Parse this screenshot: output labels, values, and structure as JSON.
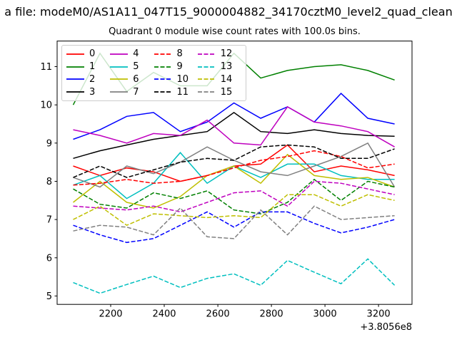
{
  "suptitle": "a file: modeM0/AS1A11_047T15_9000004882_34170cztM0_level2_quad_clean",
  "title": "Quadrant 0 module wise count rates with 100.0s bins.",
  "chart_data": {
    "type": "line",
    "title": "Quadrant 0 module wise count rates with 100.0s bins.",
    "xlabel": "",
    "ylabel": "",
    "x_offset_label": "+3.8056e8",
    "xlim": [
      2000,
      3325
    ],
    "ylim": [
      4.78,
      11.67
    ],
    "xticks": [
      2200,
      2400,
      2600,
      2800,
      3000,
      3200
    ],
    "yticks": [
      5,
      6,
      7,
      8,
      9,
      10,
      11
    ],
    "grid": false,
    "legend_position": "upper-left",
    "legend_columns": 4,
    "x": [
      2060,
      2160,
      2260,
      2360,
      2460,
      2560,
      2660,
      2760,
      2860,
      2960,
      3060,
      3160,
      3260
    ],
    "series": [
      {
        "name": "0",
        "color": "#ff0000",
        "dash": "solid",
        "values": [
          8.4,
          8.15,
          8.35,
          8.25,
          8.0,
          8.15,
          8.4,
          8.45,
          8.95,
          8.25,
          8.4,
          8.3,
          8.15
        ]
      },
      {
        "name": "1",
        "color": "#008000",
        "dash": "solid",
        "values": [
          10.0,
          11.35,
          10.35,
          10.85,
          10.5,
          10.5,
          11.35,
          10.7,
          10.9,
          11.0,
          11.05,
          10.9,
          10.65
        ]
      },
      {
        "name": "2",
        "color": "#0000ff",
        "dash": "solid",
        "values": [
          9.1,
          9.35,
          9.7,
          9.8,
          9.3,
          9.55,
          10.05,
          9.65,
          9.95,
          9.55,
          10.3,
          9.65,
          9.5
        ]
      },
      {
        "name": "3",
        "color": "#000000",
        "dash": "solid",
        "values": [
          8.6,
          8.8,
          8.95,
          9.1,
          9.2,
          9.3,
          9.8,
          9.3,
          9.25,
          9.35,
          9.25,
          9.2,
          9.18
        ]
      },
      {
        "name": "4",
        "color": "#bf00bf",
        "dash": "solid",
        "values": [
          9.35,
          9.2,
          9.0,
          9.25,
          9.2,
          9.6,
          9.0,
          8.95,
          9.95,
          9.55,
          9.45,
          9.3,
          8.9
        ]
      },
      {
        "name": "5",
        "color": "#00bfbf",
        "dash": "solid",
        "values": [
          7.9,
          8.15,
          7.55,
          7.95,
          8.75,
          7.95,
          8.4,
          8.1,
          8.45,
          8.45,
          8.15,
          8.05,
          8.05
        ]
      },
      {
        "name": "6",
        "color": "#bfbf00",
        "dash": "solid",
        "values": [
          7.45,
          8.0,
          7.45,
          7.3,
          7.6,
          8.15,
          8.4,
          7.95,
          8.7,
          8.15,
          8.05,
          8.1,
          7.85
        ]
      },
      {
        "name": "7",
        "color": "#808080",
        "dash": "solid",
        "values": [
          8.1,
          7.85,
          8.4,
          8.2,
          8.5,
          8.9,
          8.55,
          8.25,
          8.15,
          8.4,
          8.65,
          9.0,
          7.85
        ]
      },
      {
        "name": "8",
        "color": "#ff0000",
        "dash": "dashed",
        "values": [
          7.9,
          7.95,
          8.05,
          7.95,
          8.0,
          8.15,
          8.35,
          8.55,
          8.65,
          8.8,
          8.65,
          8.35,
          8.45
        ]
      },
      {
        "name": "9",
        "color": "#008000",
        "dash": "dashed",
        "values": [
          7.8,
          7.4,
          7.3,
          7.7,
          7.55,
          7.75,
          7.25,
          7.15,
          7.45,
          8.05,
          7.5,
          8.0,
          7.85
        ]
      },
      {
        "name": "10",
        "color": "#0000ff",
        "dash": "dashed",
        "values": [
          6.85,
          6.6,
          6.4,
          6.5,
          6.85,
          7.2,
          6.8,
          7.2,
          7.2,
          6.9,
          6.65,
          6.8,
          7.0
        ]
      },
      {
        "name": "11",
        "color": "#000000",
        "dash": "dashed",
        "values": [
          8.1,
          8.4,
          8.1,
          8.3,
          8.5,
          8.6,
          8.55,
          8.9,
          8.95,
          8.9,
          8.6,
          8.6,
          8.85
        ]
      },
      {
        "name": "12",
        "color": "#bf00bf",
        "dash": "dashed",
        "values": [
          7.35,
          7.3,
          7.25,
          7.35,
          7.2,
          7.45,
          7.7,
          7.75,
          7.35,
          8.0,
          7.95,
          7.8,
          7.65
        ]
      },
      {
        "name": "13",
        "color": "#00bfbf",
        "dash": "dashed",
        "values": [
          5.35,
          5.07,
          5.3,
          5.52,
          5.22,
          5.46,
          5.58,
          5.28,
          5.93,
          5.62,
          5.32,
          5.97,
          5.28
        ]
      },
      {
        "name": "14",
        "color": "#bfbf00",
        "dash": "dashed",
        "values": [
          7.0,
          7.35,
          6.85,
          7.15,
          7.1,
          7.05,
          7.1,
          7.05,
          7.65,
          7.65,
          7.35,
          7.65,
          7.5
        ]
      },
      {
        "name": "15",
        "color": "#808080",
        "dash": "dashed",
        "values": [
          6.7,
          6.85,
          6.8,
          6.6,
          7.3,
          6.55,
          6.5,
          7.25,
          6.6,
          7.35,
          7.0,
          7.05,
          7.1
        ]
      }
    ]
  }
}
